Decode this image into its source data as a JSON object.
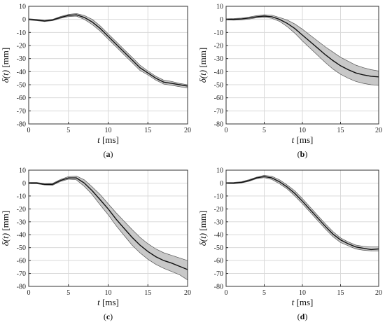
{
  "chart_data": [
    {
      "type": "line",
      "panel_label": "(a)",
      "xlabel_var": "t",
      "xlabel_unit": " [ms]",
      "ylabel_var": "δ(t)",
      "ylabel_unit": " [mm]",
      "xlim": [
        0,
        20
      ],
      "ylim": [
        -80,
        10
      ],
      "xticks": [
        0,
        5,
        10,
        15,
        20
      ],
      "yticks": [
        -80,
        -70,
        -60,
        -50,
        -40,
        -30,
        -20,
        -10,
        0,
        10
      ],
      "grid": true,
      "x": [
        0,
        1,
        2,
        3,
        4,
        5,
        6,
        7,
        8,
        9,
        10,
        11,
        12,
        13,
        14,
        15,
        16,
        17,
        18,
        19,
        20
      ],
      "mean": [
        0,
        -0.5,
        -1.2,
        -0.5,
        1.5,
        3,
        3.5,
        1.5,
        -2,
        -7,
        -13,
        -19,
        -25,
        -31,
        -37,
        -41,
        -45,
        -48,
        -49,
        -50,
        -51
      ],
      "upper": [
        0.5,
        0,
        -0.7,
        0,
        2.2,
        3.8,
        4.5,
        3,
        0,
        -5,
        -11,
        -17,
        -23,
        -29,
        -35,
        -39.5,
        -43.5,
        -46.5,
        -47.5,
        -49,
        -50
      ],
      "lower": [
        -0.5,
        -1,
        -1.7,
        -1,
        0.8,
        2.2,
        2.5,
        0,
        -4,
        -9,
        -15,
        -21,
        -27,
        -33,
        -39,
        -42.5,
        -46.5,
        -49.5,
        -50.5,
        -51.5,
        -52.5
      ],
      "line_color": "#111111",
      "band_color": "#c8c8c8"
    },
    {
      "type": "line",
      "panel_label": "(b)",
      "xlabel_var": "t",
      "xlabel_unit": " [ms]",
      "ylabel_var": "δ(t)",
      "ylabel_unit": " [mm]",
      "xlim": [
        0,
        20
      ],
      "ylim": [
        -80,
        10
      ],
      "xticks": [
        0,
        5,
        10,
        15,
        20
      ],
      "yticks": [
        -80,
        -70,
        -60,
        -50,
        -40,
        -30,
        -20,
        -10,
        0,
        10
      ],
      "grid": true,
      "x": [
        0,
        1,
        2,
        3,
        4,
        5,
        6,
        7,
        8,
        9,
        10,
        11,
        12,
        13,
        14,
        15,
        16,
        17,
        18,
        19,
        20
      ],
      "mean": [
        0,
        0,
        0.3,
        1,
        2,
        2.5,
        2,
        0,
        -3,
        -7,
        -12,
        -17,
        -22,
        -27,
        -31.5,
        -35.5,
        -38.5,
        -41,
        -42.5,
        -43.5,
        -44
      ],
      "upper": [
        0.4,
        0.6,
        1,
        1.8,
        2.8,
        3.5,
        3.2,
        1.5,
        -0.5,
        -3.5,
        -7.5,
        -12,
        -16.5,
        -21,
        -25,
        -29,
        -32,
        -35,
        -37,
        -38.5,
        -39.5
      ],
      "lower": [
        -0.4,
        -0.6,
        -0.4,
        0.2,
        1.2,
        1.5,
        0.8,
        -1.5,
        -5.5,
        -10.5,
        -16.5,
        -22,
        -27.5,
        -33,
        -38,
        -42,
        -45,
        -47.5,
        -49,
        -50,
        -50.5
      ],
      "line_color": "#111111",
      "band_color": "#c8c8c8"
    },
    {
      "type": "line",
      "panel_label": "(c)",
      "xlabel_var": "t",
      "xlabel_unit": " [ms]",
      "ylabel_var": "δ(t)",
      "ylabel_unit": " [mm]",
      "xlim": [
        0,
        20
      ],
      "ylim": [
        -80,
        10
      ],
      "xticks": [
        0,
        5,
        10,
        15,
        20
      ],
      "yticks": [
        -80,
        -70,
        -60,
        -50,
        -40,
        -30,
        -20,
        -10,
        0,
        10
      ],
      "grid": true,
      "x": [
        0,
        1,
        2,
        3,
        4,
        5,
        6,
        7,
        8,
        9,
        10,
        11,
        12,
        13,
        14,
        15,
        16,
        17,
        18,
        19,
        20
      ],
      "mean": [
        0,
        0,
        -1,
        -1,
        2,
        4,
        4,
        0,
        -6,
        -13,
        -20,
        -28,
        -35,
        -42,
        -48,
        -53,
        -57,
        -60,
        -62,
        -64.5,
        -67
      ],
      "upper": [
        0.5,
        0.5,
        -0.5,
        -0.3,
        2.8,
        5,
        5.5,
        2.5,
        -3,
        -9,
        -16,
        -23,
        -29.5,
        -36,
        -42,
        -47,
        -51,
        -54,
        -56,
        -58,
        -60
      ],
      "lower": [
        -0.5,
        -0.5,
        -1.5,
        -1.7,
        1.2,
        3,
        2.5,
        -2.5,
        -9,
        -17,
        -24.5,
        -33,
        -40.5,
        -48,
        -54,
        -59,
        -63,
        -66,
        -68.5,
        -71,
        -75
      ],
      "line_color": "#111111",
      "band_color": "#c8c8c8"
    },
    {
      "type": "line",
      "panel_label": "(d)",
      "xlabel_var": "t",
      "xlabel_unit": " [ms]",
      "ylabel_var": "δ(t)",
      "ylabel_unit": " [mm]",
      "xlim": [
        0,
        20
      ],
      "ylim": [
        -80,
        10
      ],
      "xticks": [
        0,
        5,
        10,
        15,
        20
      ],
      "yticks": [
        -80,
        -70,
        -60,
        -50,
        -40,
        -30,
        -20,
        -10,
        0,
        10
      ],
      "grid": true,
      "x": [
        0,
        1,
        2,
        3,
        4,
        5,
        6,
        7,
        8,
        9,
        10,
        11,
        12,
        13,
        14,
        15,
        16,
        17,
        18,
        19,
        20
      ],
      "mean": [
        0,
        0,
        0.5,
        2,
        4,
        5,
        4,
        1,
        -3,
        -8,
        -14,
        -20.5,
        -27,
        -33.5,
        -39.5,
        -44,
        -47,
        -49.5,
        -50.5,
        -51.5,
        -51
      ],
      "upper": [
        0.4,
        0.5,
        1,
        2.6,
        4.6,
        6,
        5.2,
        2.5,
        -1.5,
        -6,
        -12,
        -18.5,
        -25,
        -31.5,
        -37.5,
        -42.5,
        -45.5,
        -48,
        -49,
        -49.5,
        -49.5
      ],
      "lower": [
        -0.4,
        -0.5,
        0,
        1.4,
        3.4,
        4.2,
        2.8,
        -0.5,
        -4.5,
        -10,
        -16,
        -22.5,
        -29,
        -35.5,
        -41.5,
        -46,
        -48.5,
        -51,
        -52,
        -52.5,
        -52.5
      ],
      "line_color": "#111111",
      "band_color": "#c8c8c8"
    }
  ]
}
